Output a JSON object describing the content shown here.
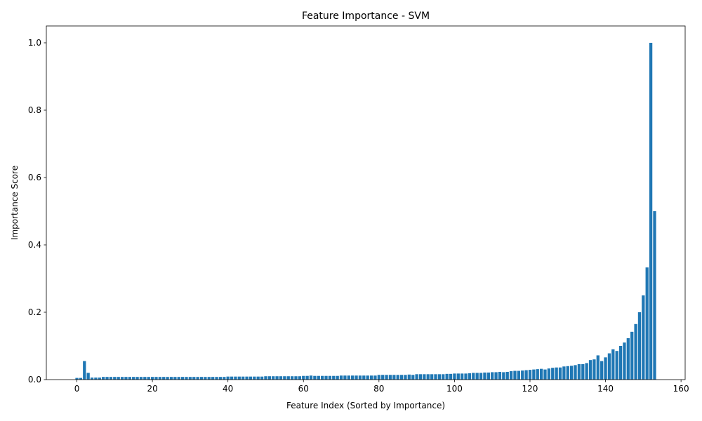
{
  "chart_data": {
    "type": "bar",
    "title": "Feature Importance - SVM",
    "x_label": "Feature Index (Sorted by Importance)",
    "y_label": "Importance Score",
    "color": "#1f77b4",
    "bar_width": 0.8,
    "x": [
      0,
      1,
      2,
      3,
      4,
      5,
      6,
      7,
      8,
      9,
      10,
      11,
      12,
      13,
      14,
      15,
      16,
      17,
      18,
      19,
      20,
      21,
      22,
      23,
      24,
      25,
      26,
      27,
      28,
      29,
      30,
      31,
      32,
      33,
      34,
      35,
      36,
      37,
      38,
      39,
      40,
      41,
      42,
      43,
      44,
      45,
      46,
      47,
      48,
      49,
      50,
      51,
      52,
      53,
      54,
      55,
      56,
      57,
      58,
      59,
      60,
      61,
      62,
      63,
      64,
      65,
      66,
      67,
      68,
      69,
      70,
      71,
      72,
      73,
      74,
      75,
      76,
      77,
      78,
      79,
      80,
      81,
      82,
      83,
      84,
      85,
      86,
      87,
      88,
      89,
      90,
      91,
      92,
      93,
      94,
      95,
      96,
      97,
      98,
      99,
      100,
      101,
      102,
      103,
      104,
      105,
      106,
      107,
      108,
      109,
      110,
      111,
      112,
      113,
      114,
      115,
      116,
      117,
      118,
      119,
      120,
      121,
      122,
      123,
      124,
      125,
      126,
      127,
      128,
      129,
      130,
      131,
      132,
      133,
      134,
      135,
      136,
      137,
      138,
      139,
      140,
      141,
      142,
      143,
      144,
      145,
      146,
      147,
      148,
      149,
      150,
      151,
      152,
      153
    ],
    "values": [
      0.005,
      0.005,
      0.055,
      0.02,
      0.006,
      0.006,
      0.006,
      0.008,
      0.008,
      0.008,
      0.008,
      0.008,
      0.008,
      0.008,
      0.008,
      0.008,
      0.008,
      0.008,
      0.008,
      0.008,
      0.008,
      0.008,
      0.008,
      0.008,
      0.008,
      0.008,
      0.008,
      0.008,
      0.008,
      0.008,
      0.008,
      0.008,
      0.008,
      0.008,
      0.008,
      0.008,
      0.008,
      0.008,
      0.008,
      0.008,
      0.009,
      0.009,
      0.009,
      0.009,
      0.009,
      0.009,
      0.009,
      0.009,
      0.009,
      0.009,
      0.01,
      0.01,
      0.01,
      0.01,
      0.01,
      0.01,
      0.01,
      0.01,
      0.01,
      0.01,
      0.011,
      0.011,
      0.012,
      0.011,
      0.011,
      0.011,
      0.011,
      0.011,
      0.011,
      0.011,
      0.012,
      0.012,
      0.012,
      0.012,
      0.012,
      0.012,
      0.012,
      0.012,
      0.012,
      0.012,
      0.014,
      0.014,
      0.014,
      0.014,
      0.014,
      0.014,
      0.014,
      0.014,
      0.015,
      0.014,
      0.016,
      0.016,
      0.016,
      0.016,
      0.016,
      0.016,
      0.016,
      0.016,
      0.017,
      0.017,
      0.018,
      0.018,
      0.018,
      0.018,
      0.019,
      0.02,
      0.02,
      0.02,
      0.021,
      0.021,
      0.022,
      0.022,
      0.023,
      0.022,
      0.023,
      0.025,
      0.026,
      0.026,
      0.027,
      0.028,
      0.029,
      0.03,
      0.031,
      0.032,
      0.03,
      0.033,
      0.035,
      0.036,
      0.036,
      0.039,
      0.04,
      0.041,
      0.043,
      0.046,
      0.046,
      0.049,
      0.058,
      0.06,
      0.072,
      0.055,
      0.066,
      0.078,
      0.09,
      0.085,
      0.1,
      0.11,
      0.123,
      0.142,
      0.165,
      0.2,
      0.25,
      0.333,
      1.0,
      0.5
    ],
    "xlim": [
      -8.09,
      161.09
    ],
    "ylim": [
      0,
      1.05
    ],
    "xticks": [
      0,
      20,
      40,
      60,
      80,
      100,
      120,
      140,
      160
    ],
    "yticks": [
      {
        "value": 0,
        "label": "0.0"
      },
      0.2,
      0.4,
      0.6,
      0.8,
      {
        "value": 1,
        "label": "1.0"
      }
    ]
  }
}
